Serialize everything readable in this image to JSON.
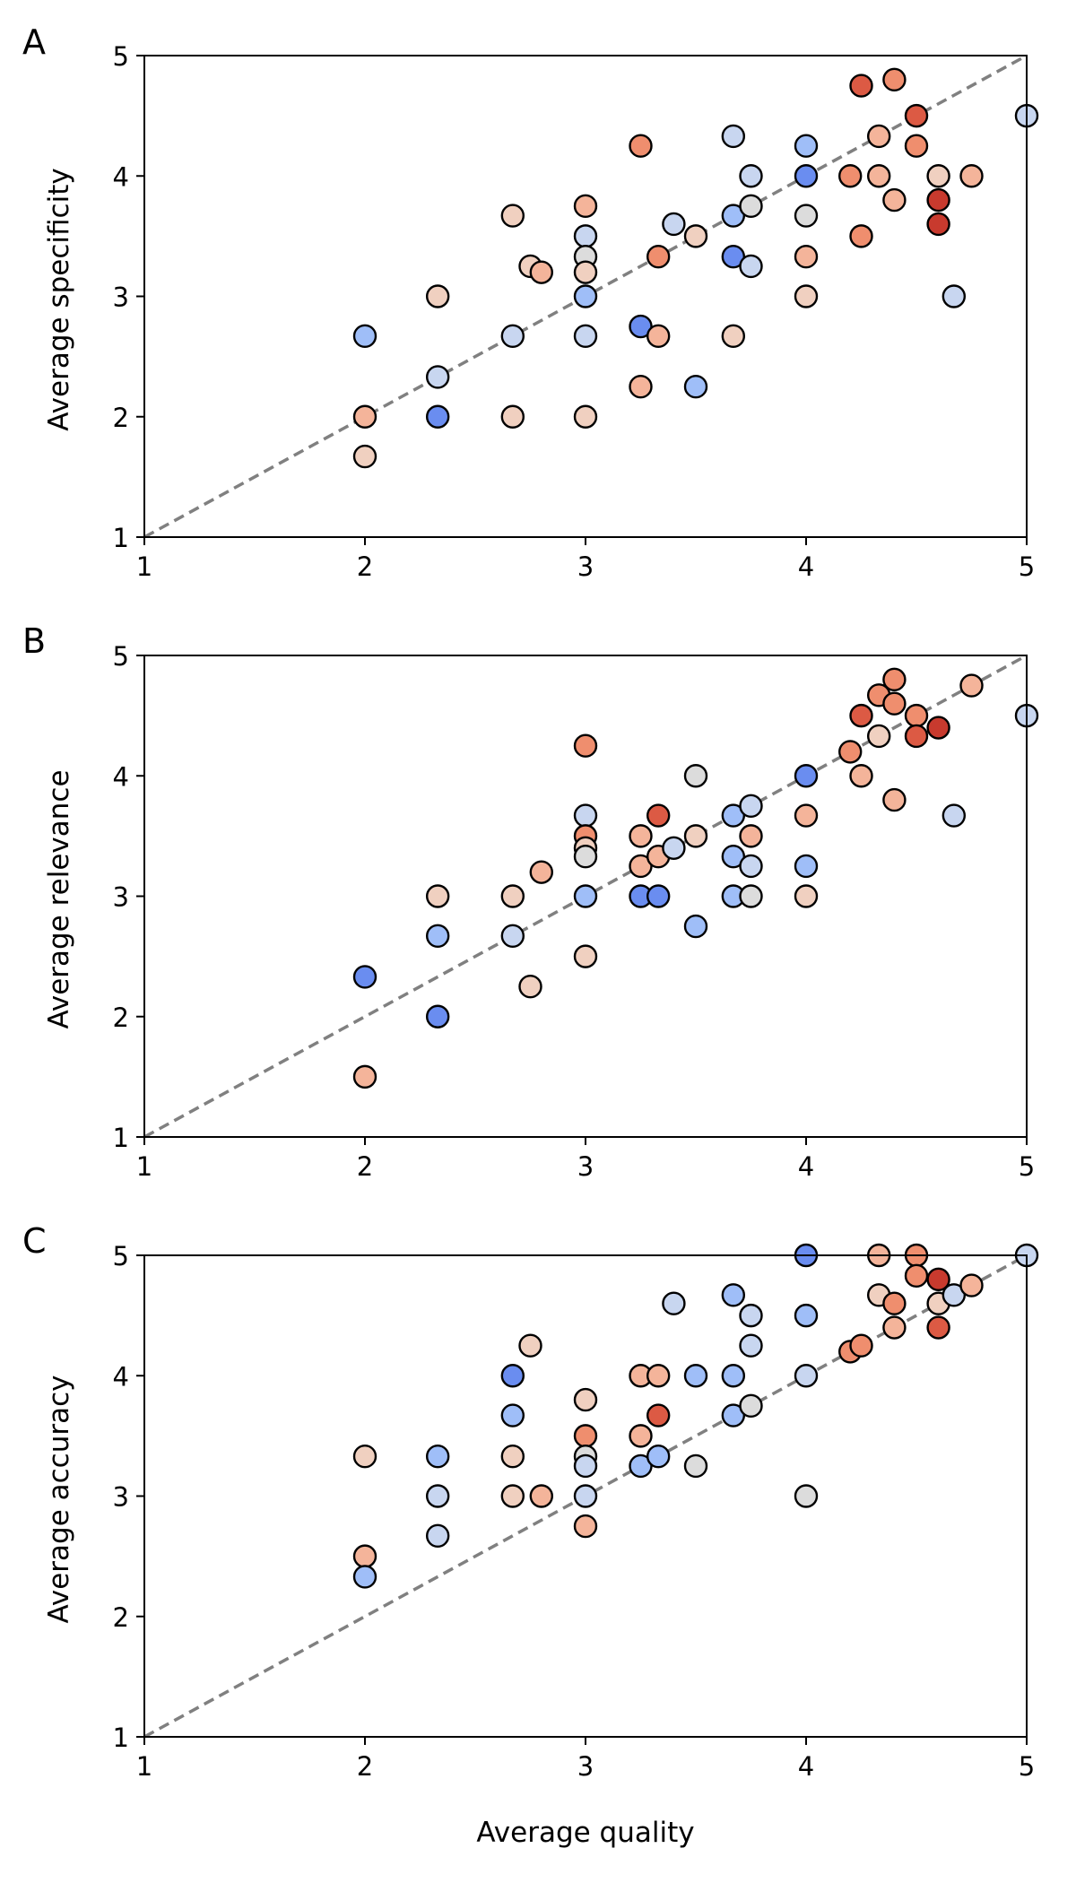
{
  "figure": {
    "xlabel": "Average quality"
  },
  "colors": {
    "diagonal": "#808080",
    "marker_edge": "#000000",
    "axes": "#000000",
    "palette": [
      "#6a8df0",
      "#9fbef8",
      "#c8d6f0",
      "#dcdcdc",
      "#f0d0c0",
      "#f4b49a",
      "#ef8e6e",
      "#dc5a44",
      "#c83a2e"
    ]
  },
  "chart_data": [
    {
      "type": "scatter",
      "panel_label": "A",
      "title": "",
      "xlabel": "",
      "ylabel": "Average specificity",
      "xlim": [
        1,
        5
      ],
      "ylim": [
        1,
        5
      ],
      "xticks": [
        "1",
        "2",
        "3",
        "4",
        "5"
      ],
      "yticks": [
        "1",
        "2",
        "3",
        "4",
        "5"
      ],
      "reference_line": "y = x",
      "points": [
        {
          "x": 2.0,
          "y": 2.67,
          "c": 1
        },
        {
          "x": 2.0,
          "y": 2.0,
          "c": 5
        },
        {
          "x": 2.0,
          "y": 1.67,
          "c": 4
        },
        {
          "x": 2.33,
          "y": 3.0,
          "c": 4
        },
        {
          "x": 2.33,
          "y": 2.33,
          "c": 2
        },
        {
          "x": 2.33,
          "y": 2.0,
          "c": 0
        },
        {
          "x": 2.67,
          "y": 3.67,
          "c": 4
        },
        {
          "x": 2.67,
          "y": 2.67,
          "c": 2
        },
        {
          "x": 2.67,
          "y": 2.0,
          "c": 4
        },
        {
          "x": 2.75,
          "y": 3.25,
          "c": 4
        },
        {
          "x": 2.8,
          "y": 3.2,
          "c": 5
        },
        {
          "x": 3.0,
          "y": 3.75,
          "c": 5
        },
        {
          "x": 3.0,
          "y": 3.5,
          "c": 2
        },
        {
          "x": 3.0,
          "y": 3.33,
          "c": 3
        },
        {
          "x": 3.0,
          "y": 3.2,
          "c": 4
        },
        {
          "x": 3.0,
          "y": 3.0,
          "c": 1
        },
        {
          "x": 3.0,
          "y": 2.67,
          "c": 2
        },
        {
          "x": 3.0,
          "y": 2.0,
          "c": 4
        },
        {
          "x": 3.25,
          "y": 4.25,
          "c": 6
        },
        {
          "x": 3.25,
          "y": 2.75,
          "c": 0
        },
        {
          "x": 3.25,
          "y": 2.25,
          "c": 5
        },
        {
          "x": 3.33,
          "y": 3.33,
          "c": 6
        },
        {
          "x": 3.33,
          "y": 2.67,
          "c": 5
        },
        {
          "x": 3.4,
          "y": 3.6,
          "c": 2
        },
        {
          "x": 3.5,
          "y": 3.5,
          "c": 4
        },
        {
          "x": 3.5,
          "y": 2.25,
          "c": 1
        },
        {
          "x": 3.67,
          "y": 4.33,
          "c": 2
        },
        {
          "x": 3.67,
          "y": 3.67,
          "c": 1
        },
        {
          "x": 3.67,
          "y": 3.33,
          "c": 0
        },
        {
          "x": 3.67,
          "y": 2.67,
          "c": 4
        },
        {
          "x": 3.75,
          "y": 4.0,
          "c": 2
        },
        {
          "x": 3.75,
          "y": 3.75,
          "c": 3
        },
        {
          "x": 3.75,
          "y": 3.25,
          "c": 2
        },
        {
          "x": 4.0,
          "y": 4.25,
          "c": 1
        },
        {
          "x": 4.0,
          "y": 4.0,
          "c": 0
        },
        {
          "x": 4.0,
          "y": 3.67,
          "c": 3
        },
        {
          "x": 4.0,
          "y": 3.33,
          "c": 5
        },
        {
          "x": 4.0,
          "y": 3.0,
          "c": 4
        },
        {
          "x": 4.2,
          "y": 4.0,
          "c": 6
        },
        {
          "x": 4.25,
          "y": 4.75,
          "c": 7
        },
        {
          "x": 4.25,
          "y": 3.5,
          "c": 6
        },
        {
          "x": 4.33,
          "y": 4.33,
          "c": 5
        },
        {
          "x": 4.33,
          "y": 4.0,
          "c": 5
        },
        {
          "x": 4.4,
          "y": 4.8,
          "c": 6
        },
        {
          "x": 4.4,
          "y": 3.8,
          "c": 5
        },
        {
          "x": 4.5,
          "y": 4.5,
          "c": 7
        },
        {
          "x": 4.5,
          "y": 4.25,
          "c": 6
        },
        {
          "x": 4.6,
          "y": 4.0,
          "c": 4
        },
        {
          "x": 4.6,
          "y": 3.8,
          "c": 8
        },
        {
          "x": 4.6,
          "y": 3.6,
          "c": 8
        },
        {
          "x": 4.67,
          "y": 3.0,
          "c": 2
        },
        {
          "x": 4.75,
          "y": 4.0,
          "c": 5
        },
        {
          "x": 5.0,
          "y": 4.5,
          "c": 2
        }
      ]
    },
    {
      "type": "scatter",
      "panel_label": "B",
      "title": "",
      "xlabel": "",
      "ylabel": "Average relevance",
      "xlim": [
        1,
        5
      ],
      "ylim": [
        1,
        5
      ],
      "xticks": [
        "1",
        "2",
        "3",
        "4",
        "5"
      ],
      "yticks": [
        "1",
        "2",
        "3",
        "4",
        "5"
      ],
      "reference_line": "y = x",
      "points": [
        {
          "x": 2.0,
          "y": 2.33,
          "c": 0
        },
        {
          "x": 2.0,
          "y": 1.5,
          "c": 5
        },
        {
          "x": 2.33,
          "y": 3.0,
          "c": 4
        },
        {
          "x": 2.33,
          "y": 2.67,
          "c": 1
        },
        {
          "x": 2.33,
          "y": 2.0,
          "c": 0
        },
        {
          "x": 2.67,
          "y": 3.0,
          "c": 4
        },
        {
          "x": 2.67,
          "y": 2.67,
          "c": 2
        },
        {
          "x": 2.75,
          "y": 2.25,
          "c": 4
        },
        {
          "x": 2.8,
          "y": 3.2,
          "c": 5
        },
        {
          "x": 3.0,
          "y": 4.25,
          "c": 6
        },
        {
          "x": 3.0,
          "y": 3.67,
          "c": 2
        },
        {
          "x": 3.0,
          "y": 3.5,
          "c": 6
        },
        {
          "x": 3.0,
          "y": 3.4,
          "c": 4
        },
        {
          "x": 3.0,
          "y": 3.33,
          "c": 3
        },
        {
          "x": 3.0,
          "y": 3.0,
          "c": 1
        },
        {
          "x": 3.0,
          "y": 2.5,
          "c": 4
        },
        {
          "x": 3.25,
          "y": 3.5,
          "c": 5
        },
        {
          "x": 3.25,
          "y": 3.25,
          "c": 5
        },
        {
          "x": 3.25,
          "y": 3.0,
          "c": 0
        },
        {
          "x": 3.33,
          "y": 3.67,
          "c": 7
        },
        {
          "x": 3.33,
          "y": 3.33,
          "c": 5
        },
        {
          "x": 3.33,
          "y": 3.0,
          "c": 0
        },
        {
          "x": 3.4,
          "y": 3.4,
          "c": 2
        },
        {
          "x": 3.5,
          "y": 4.0,
          "c": 3
        },
        {
          "x": 3.5,
          "y": 3.5,
          "c": 4
        },
        {
          "x": 3.5,
          "y": 2.75,
          "c": 1
        },
        {
          "x": 3.67,
          "y": 3.67,
          "c": 1
        },
        {
          "x": 3.67,
          "y": 3.33,
          "c": 1
        },
        {
          "x": 3.67,
          "y": 3.0,
          "c": 1
        },
        {
          "x": 3.75,
          "y": 3.75,
          "c": 2
        },
        {
          "x": 3.75,
          "y": 3.5,
          "c": 5
        },
        {
          "x": 3.75,
          "y": 3.25,
          "c": 2
        },
        {
          "x": 3.75,
          "y": 3.0,
          "c": 3
        },
        {
          "x": 4.0,
          "y": 4.0,
          "c": 0
        },
        {
          "x": 4.0,
          "y": 3.67,
          "c": 5
        },
        {
          "x": 4.0,
          "y": 3.25,
          "c": 1
        },
        {
          "x": 4.0,
          "y": 3.0,
          "c": 4
        },
        {
          "x": 4.2,
          "y": 4.2,
          "c": 6
        },
        {
          "x": 4.25,
          "y": 4.5,
          "c": 7
        },
        {
          "x": 4.25,
          "y": 4.0,
          "c": 5
        },
        {
          "x": 4.33,
          "y": 4.67,
          "c": 6
        },
        {
          "x": 4.33,
          "y": 4.33,
          "c": 4
        },
        {
          "x": 4.4,
          "y": 4.8,
          "c": 6
        },
        {
          "x": 4.4,
          "y": 4.6,
          "c": 6
        },
        {
          "x": 4.4,
          "y": 3.8,
          "c": 5
        },
        {
          "x": 4.5,
          "y": 4.5,
          "c": 6
        },
        {
          "x": 4.5,
          "y": 4.33,
          "c": 7
        },
        {
          "x": 4.6,
          "y": 4.4,
          "c": 8
        },
        {
          "x": 4.67,
          "y": 3.67,
          "c": 2
        },
        {
          "x": 4.75,
          "y": 4.75,
          "c": 5
        },
        {
          "x": 5.0,
          "y": 4.5,
          "c": 2
        }
      ]
    },
    {
      "type": "scatter",
      "panel_label": "C",
      "title": "",
      "xlabel": "Average quality",
      "ylabel": "Average accuracy",
      "xlim": [
        1,
        5
      ],
      "ylim": [
        1,
        5
      ],
      "xticks": [
        "1",
        "2",
        "3",
        "4",
        "5"
      ],
      "yticks": [
        "1",
        "2",
        "3",
        "4",
        "5"
      ],
      "reference_line": "y = x",
      "points": [
        {
          "x": 2.0,
          "y": 3.33,
          "c": 4
        },
        {
          "x": 2.0,
          "y": 2.5,
          "c": 5
        },
        {
          "x": 2.0,
          "y": 2.33,
          "c": 1
        },
        {
          "x": 2.33,
          "y": 3.33,
          "c": 1
        },
        {
          "x": 2.33,
          "y": 3.0,
          "c": 2
        },
        {
          "x": 2.33,
          "y": 2.67,
          "c": 2
        },
        {
          "x": 2.67,
          "y": 4.0,
          "c": 0
        },
        {
          "x": 2.67,
          "y": 3.67,
          "c": 1
        },
        {
          "x": 2.67,
          "y": 3.33,
          "c": 4
        },
        {
          "x": 2.67,
          "y": 3.0,
          "c": 4
        },
        {
          "x": 2.75,
          "y": 4.25,
          "c": 4
        },
        {
          "x": 2.8,
          "y": 3.0,
          "c": 5
        },
        {
          "x": 3.0,
          "y": 3.8,
          "c": 4
        },
        {
          "x": 3.0,
          "y": 3.5,
          "c": 6
        },
        {
          "x": 3.0,
          "y": 3.33,
          "c": 3
        },
        {
          "x": 3.0,
          "y": 3.25,
          "c": 2
        },
        {
          "x": 3.0,
          "y": 3.0,
          "c": 2
        },
        {
          "x": 3.0,
          "y": 2.75,
          "c": 5
        },
        {
          "x": 3.25,
          "y": 4.0,
          "c": 5
        },
        {
          "x": 3.25,
          "y": 3.5,
          "c": 5
        },
        {
          "x": 3.25,
          "y": 3.25,
          "c": 1
        },
        {
          "x": 3.33,
          "y": 4.0,
          "c": 5
        },
        {
          "x": 3.33,
          "y": 3.67,
          "c": 7
        },
        {
          "x": 3.33,
          "y": 3.33,
          "c": 1
        },
        {
          "x": 3.4,
          "y": 4.6,
          "c": 2
        },
        {
          "x": 3.5,
          "y": 4.0,
          "c": 1
        },
        {
          "x": 3.5,
          "y": 3.25,
          "c": 3
        },
        {
          "x": 3.67,
          "y": 4.67,
          "c": 1
        },
        {
          "x": 3.67,
          "y": 4.0,
          "c": 1
        },
        {
          "x": 3.67,
          "y": 3.67,
          "c": 1
        },
        {
          "x": 3.75,
          "y": 4.5,
          "c": 2
        },
        {
          "x": 3.75,
          "y": 4.25,
          "c": 2
        },
        {
          "x": 3.75,
          "y": 3.75,
          "c": 3
        },
        {
          "x": 4.0,
          "y": 5.0,
          "c": 0
        },
        {
          "x": 4.0,
          "y": 4.5,
          "c": 1
        },
        {
          "x": 4.0,
          "y": 4.0,
          "c": 2
        },
        {
          "x": 4.0,
          "y": 3.0,
          "c": 3
        },
        {
          "x": 4.2,
          "y": 4.2,
          "c": 6
        },
        {
          "x": 4.25,
          "y": 4.25,
          "c": 6
        },
        {
          "x": 4.33,
          "y": 5.0,
          "c": 5
        },
        {
          "x": 4.33,
          "y": 4.67,
          "c": 4
        },
        {
          "x": 4.4,
          "y": 4.6,
          "c": 6
        },
        {
          "x": 4.4,
          "y": 4.4,
          "c": 5
        },
        {
          "x": 4.5,
          "y": 5.0,
          "c": 6
        },
        {
          "x": 4.5,
          "y": 4.83,
          "c": 6
        },
        {
          "x": 4.6,
          "y": 4.8,
          "c": 8
        },
        {
          "x": 4.6,
          "y": 4.6,
          "c": 4
        },
        {
          "x": 4.6,
          "y": 4.4,
          "c": 7
        },
        {
          "x": 4.67,
          "y": 4.67,
          "c": 2
        },
        {
          "x": 4.75,
          "y": 4.75,
          "c": 5
        },
        {
          "x": 5.0,
          "y": 5.0,
          "c": 2
        }
      ]
    }
  ]
}
